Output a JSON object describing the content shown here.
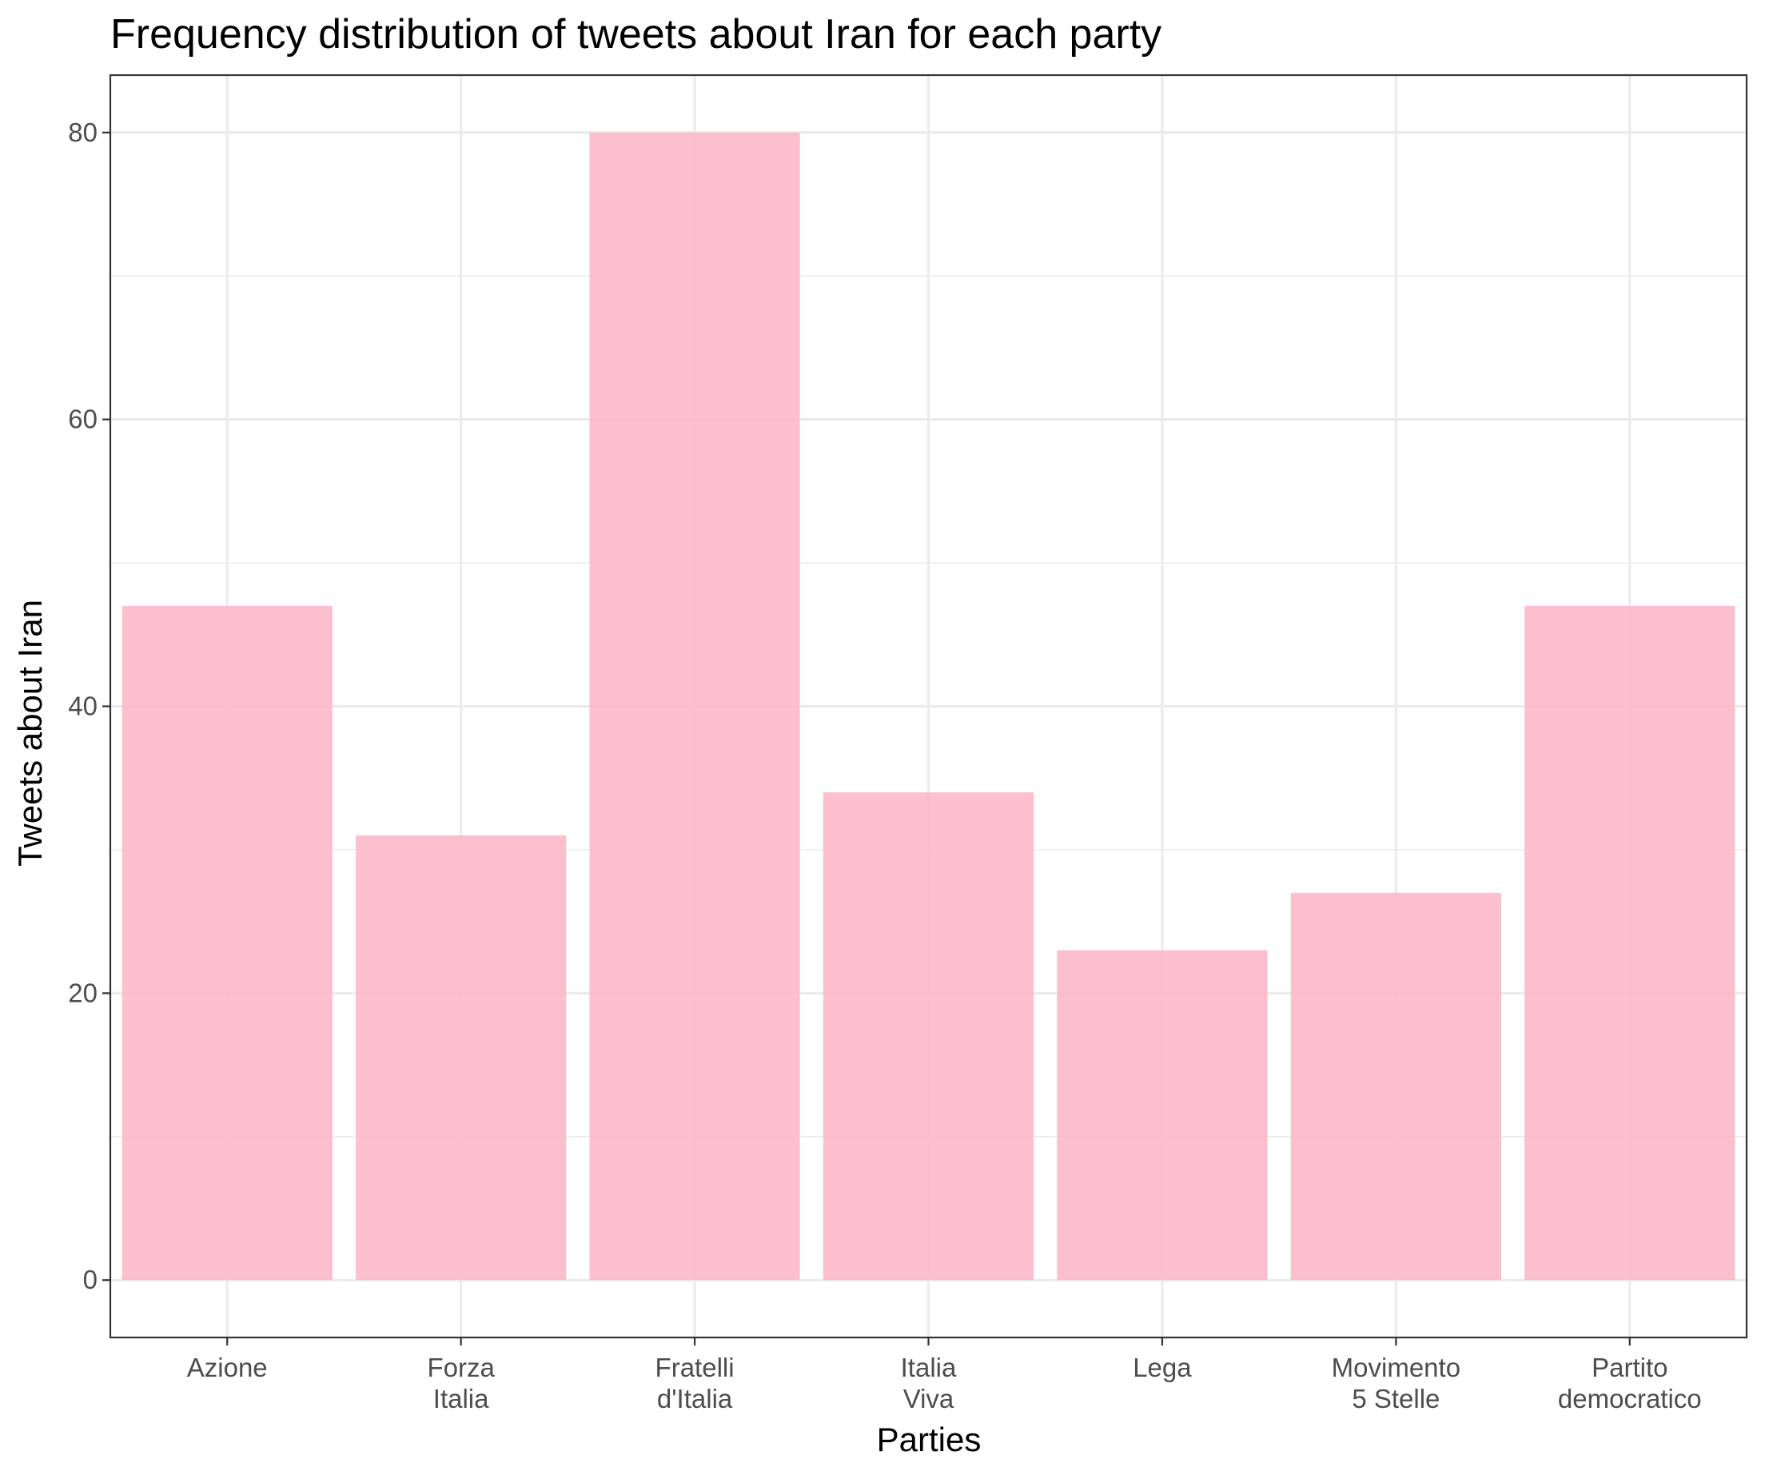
{
  "chart_data": {
    "type": "bar",
    "title": "Frequency distribution of tweets about Iran for each party",
    "xlabel": "Parties",
    "ylabel": "Tweets about Iran",
    "categories": [
      [
        "Azione"
      ],
      [
        "Forza",
        "Italia"
      ],
      [
        "Fratelli",
        "d'Italia"
      ],
      [
        "Italia",
        "Viva"
      ],
      [
        "Lega"
      ],
      [
        "Movimento",
        "5 Stelle"
      ],
      [
        "Partito",
        "democratico"
      ]
    ],
    "values": [
      47,
      31,
      80,
      34,
      23,
      27,
      47
    ],
    "ylim": [
      -4,
      84
    ],
    "yticks": [
      0,
      20,
      40,
      60,
      80
    ],
    "grid": true,
    "legend": "none",
    "bar_color": "#fbb6c7"
  }
}
